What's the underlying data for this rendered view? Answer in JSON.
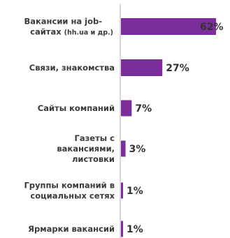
{
  "chart_data": {
    "type": "bar",
    "orientation": "horizontal",
    "categories": [
      "Вакансии на job-сайтах (hh.ua и др.)",
      "Связи, знакомства",
      "Сайты компаний",
      "Газеты с вакансиями, листовки",
      "Группы компаний в социальных сетях",
      "Ярмарки вакансий"
    ],
    "values": [
      62,
      27,
      7,
      3,
      1,
      1
    ],
    "value_labels": [
      "62%",
      "27%",
      "7%",
      "3%",
      "1%",
      "1%"
    ],
    "xlim": [
      0,
      70
    ],
    "bar_color": "#7b2d9b",
    "axis_color": "#b0b0b0",
    "grid": false,
    "legend": "none",
    "title": "",
    "xlabel": "",
    "ylabel": ""
  }
}
